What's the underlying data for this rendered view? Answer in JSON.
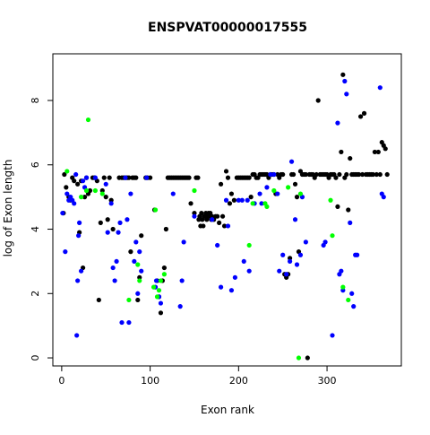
{
  "chart_data": {
    "type": "scatter",
    "title": "ENSPVAT00000017555",
    "xlabel": "Exon rank",
    "ylabel": "log of Exon length",
    "xlim": [
      -10,
      384
    ],
    "ylim": [
      -0.25,
      9.45
    ],
    "xticks": [
      "0",
      "100",
      "200",
      "300"
    ],
    "yticks": [
      "0",
      "2",
      "4",
      "6",
      "8"
    ],
    "xtick_values": [
      0,
      100,
      200,
      300
    ],
    "ytick_values": [
      0,
      2,
      4,
      6,
      8
    ],
    "legend": "none",
    "grid": false,
    "series": [
      {
        "color": "#000000",
        "points": [
          [
            2,
            4.5
          ],
          [
            3,
            5.7
          ],
          [
            5,
            5.3
          ],
          [
            8,
            5.0
          ],
          [
            10,
            4.9
          ],
          [
            12,
            5.6
          ],
          [
            14,
            5.5
          ],
          [
            18,
            5.4
          ],
          [
            20,
            3.9
          ],
          [
            22,
            5.5
          ],
          [
            24,
            2.8
          ],
          [
            26,
            5.0
          ],
          [
            28,
            5.6
          ],
          [
            30,
            5.1
          ],
          [
            32,
            5.2
          ],
          [
            35,
            5.6
          ],
          [
            37,
            5.6
          ],
          [
            40,
            5.5
          ],
          [
            42,
            1.8
          ],
          [
            44,
            4.2
          ],
          [
            46,
            5.2
          ],
          [
            48,
            5.6
          ],
          [
            50,
            5.0
          ],
          [
            52,
            4.3
          ],
          [
            54,
            5.6
          ],
          [
            56,
            4.9
          ],
          [
            58,
            4.0
          ],
          [
            65,
            5.6
          ],
          [
            68,
            5.6
          ],
          [
            70,
            5.6
          ],
          [
            72,
            5.6
          ],
          [
            74,
            5.6
          ],
          [
            76,
            5.6
          ],
          [
            78,
            3.3
          ],
          [
            80,
            5.6
          ],
          [
            82,
            5.6
          ],
          [
            84,
            5.6
          ],
          [
            86,
            1.8
          ],
          [
            88,
            2.5
          ],
          [
            90,
            3.8
          ],
          [
            95,
            5.6
          ],
          [
            97,
            5.6
          ],
          [
            100,
            5.6
          ],
          [
            105,
            4.6
          ],
          [
            108,
            2.4
          ],
          [
            110,
            1.9
          ],
          [
            112,
            1.4
          ],
          [
            114,
            2.4
          ],
          [
            116,
            2.8
          ],
          [
            118,
            4.0
          ],
          [
            120,
            5.6
          ],
          [
            122,
            5.6
          ],
          [
            124,
            5.6
          ],
          [
            126,
            5.6
          ],
          [
            128,
            5.6
          ],
          [
            130,
            5.6
          ],
          [
            132,
            5.6
          ],
          [
            134,
            5.6
          ],
          [
            136,
            5.6
          ],
          [
            138,
            5.6
          ],
          [
            140,
            5.6
          ],
          [
            142,
            5.6
          ],
          [
            144,
            5.6
          ],
          [
            146,
            4.8
          ],
          [
            150,
            4.5
          ],
          [
            152,
            5.6
          ],
          [
            154,
            5.6
          ],
          [
            155,
            4.3
          ],
          [
            156,
            4.4
          ],
          [
            157,
            4.1
          ],
          [
            158,
            4.5
          ],
          [
            159,
            4.3
          ],
          [
            160,
            4.1
          ],
          [
            161,
            4.4
          ],
          [
            162,
            4.4
          ],
          [
            163,
            4.5
          ],
          [
            164,
            4.3
          ],
          [
            165,
            4.4
          ],
          [
            166,
            4.5
          ],
          [
            167,
            4.4
          ],
          [
            168,
            4.5
          ],
          [
            169,
            4.3
          ],
          [
            170,
            4.4
          ],
          [
            172,
            4.3
          ],
          [
            174,
            4.4
          ],
          [
            176,
            4.4
          ],
          [
            178,
            4.2
          ],
          [
            180,
            5.4
          ],
          [
            182,
            4.4
          ],
          [
            184,
            4.1
          ],
          [
            186,
            5.8
          ],
          [
            188,
            5.6
          ],
          [
            190,
            4.8
          ],
          [
            192,
            5.1
          ],
          [
            195,
            4.9
          ],
          [
            198,
            5.6
          ],
          [
            200,
            5.6
          ],
          [
            202,
            5.6
          ],
          [
            204,
            5.6
          ],
          [
            206,
            5.6
          ],
          [
            208,
            5.6
          ],
          [
            210,
            5.6
          ],
          [
            212,
            5.6
          ],
          [
            214,
            5.0
          ],
          [
            216,
            5.7
          ],
          [
            218,
            5.7
          ],
          [
            220,
            5.6
          ],
          [
            222,
            5.6
          ],
          [
            224,
            5.7
          ],
          [
            226,
            5.7
          ],
          [
            228,
            5.7
          ],
          [
            230,
            5.7
          ],
          [
            232,
            5.7
          ],
          [
            234,
            5.6
          ],
          [
            236,
            5.7
          ],
          [
            238,
            5.7
          ],
          [
            240,
            5.7
          ],
          [
            242,
            5.1
          ],
          [
            244,
            5.7
          ],
          [
            246,
            5.6
          ],
          [
            248,
            5.7
          ],
          [
            250,
            5.7
          ],
          [
            252,
            2.6
          ],
          [
            254,
            2.5
          ],
          [
            256,
            2.6
          ],
          [
            258,
            3.1
          ],
          [
            260,
            5.7
          ],
          [
            262,
            5.7
          ],
          [
            264,
            5.4
          ],
          [
            266,
            5.0
          ],
          [
            268,
            3.3
          ],
          [
            270,
            5.8
          ],
          [
            272,
            5.7
          ],
          [
            274,
            5.7
          ],
          [
            276,
            5.7
          ],
          [
            278,
            0.0
          ],
          [
            280,
            5.7
          ],
          [
            282,
            5.7
          ],
          [
            284,
            5.7
          ],
          [
            286,
            5.6
          ],
          [
            288,
            5.7
          ],
          [
            290,
            8.0
          ],
          [
            292,
            5.7
          ],
          [
            294,
            5.7
          ],
          [
            296,
            5.7
          ],
          [
            298,
            5.7
          ],
          [
            300,
            5.7
          ],
          [
            302,
            5.6
          ],
          [
            304,
            5.7
          ],
          [
            306,
            5.7
          ],
          [
            308,
            5.7
          ],
          [
            310,
            5.6
          ],
          [
            312,
            4.7
          ],
          [
            314,
            5.7
          ],
          [
            316,
            6.4
          ],
          [
            318,
            8.8
          ],
          [
            320,
            5.6
          ],
          [
            322,
            5.7
          ],
          [
            324,
            4.6
          ],
          [
            326,
            6.2
          ],
          [
            328,
            5.7
          ],
          [
            330,
            5.7
          ],
          [
            332,
            5.7
          ],
          [
            334,
            5.7
          ],
          [
            336,
            5.7
          ],
          [
            338,
            7.5
          ],
          [
            340,
            5.7
          ],
          [
            342,
            7.6
          ],
          [
            344,
            5.7
          ],
          [
            346,
            5.7
          ],
          [
            348,
            5.7
          ],
          [
            350,
            5.7
          ],
          [
            352,
            5.7
          ],
          [
            354,
            6.4
          ],
          [
            356,
            5.7
          ],
          [
            358,
            6.4
          ],
          [
            360,
            5.7
          ],
          [
            362,
            6.7
          ],
          [
            364,
            6.6
          ],
          [
            366,
            6.5
          ],
          [
            368,
            5.7
          ]
        ]
      },
      {
        "color": "#0000ff",
        "points": [
          [
            1,
            4.5
          ],
          [
            4,
            3.3
          ],
          [
            6,
            5.1
          ],
          [
            8,
            4.9
          ],
          [
            10,
            5.0
          ],
          [
            12,
            4.9
          ],
          [
            14,
            4.8
          ],
          [
            16,
            5.7
          ],
          [
            17,
            0.7
          ],
          [
            18,
            2.4
          ],
          [
            19,
            3.8
          ],
          [
            20,
            4.2
          ],
          [
            22,
            2.7
          ],
          [
            24,
            5.5
          ],
          [
            26,
            5.3
          ],
          [
            28,
            5.6
          ],
          [
            38,
            5.6
          ],
          [
            50,
            5.4
          ],
          [
            52,
            3.9
          ],
          [
            56,
            4.8
          ],
          [
            58,
            2.8
          ],
          [
            60,
            2.4
          ],
          [
            62,
            3.0
          ],
          [
            64,
            3.9
          ],
          [
            66,
            4.2
          ],
          [
            68,
            1.1
          ],
          [
            72,
            5.6
          ],
          [
            74,
            4.3
          ],
          [
            76,
            1.1
          ],
          [
            78,
            5.1
          ],
          [
            82,
            3.0
          ],
          [
            84,
            3.6
          ],
          [
            86,
            2.0
          ],
          [
            88,
            3.3
          ],
          [
            90,
            2.7
          ],
          [
            96,
            5.6
          ],
          [
            106,
            2.2
          ],
          [
            107,
            2.4
          ],
          [
            110,
            1.9
          ],
          [
            112,
            1.7
          ],
          [
            126,
            5.1
          ],
          [
            134,
            1.6
          ],
          [
            136,
            2.4
          ],
          [
            138,
            3.6
          ],
          [
            150,
            4.4
          ],
          [
            170,
            4.3
          ],
          [
            176,
            3.5
          ],
          [
            180,
            2.2
          ],
          [
            186,
            4.9
          ],
          [
            188,
            4.1
          ],
          [
            192,
            2.1
          ],
          [
            196,
            2.5
          ],
          [
            200,
            4.9
          ],
          [
            204,
            4.9
          ],
          [
            206,
            3.0
          ],
          [
            210,
            4.9
          ],
          [
            212,
            2.7
          ],
          [
            218,
            4.8
          ],
          [
            224,
            5.1
          ],
          [
            226,
            4.8
          ],
          [
            232,
            5.3
          ],
          [
            236,
            5.7
          ],
          [
            240,
            5.7
          ],
          [
            244,
            5.1
          ],
          [
            246,
            2.7
          ],
          [
            250,
            3.2
          ],
          [
            254,
            2.6
          ],
          [
            258,
            3.0
          ],
          [
            260,
            6.1
          ],
          [
            264,
            4.3
          ],
          [
            266,
            2.9
          ],
          [
            270,
            3.2
          ],
          [
            272,
            5.0
          ],
          [
            276,
            3.6
          ],
          [
            296,
            3.5
          ],
          [
            298,
            3.6
          ],
          [
            306,
            0.7
          ],
          [
            312,
            7.3
          ],
          [
            314,
            2.6
          ],
          [
            316,
            2.7
          ],
          [
            318,
            2.1
          ],
          [
            320,
            8.6
          ],
          [
            322,
            8.2
          ],
          [
            326,
            4.2
          ],
          [
            328,
            2.0
          ],
          [
            330,
            1.6
          ],
          [
            332,
            3.2
          ],
          [
            334,
            3.2
          ],
          [
            360,
            8.4
          ],
          [
            362,
            5.1
          ],
          [
            364,
            5.0
          ]
        ]
      },
      {
        "color": "#00ff00",
        "points": [
          [
            6,
            5.8
          ],
          [
            22,
            5.0
          ],
          [
            28,
            5.2
          ],
          [
            30,
            7.4
          ],
          [
            38,
            5.2
          ],
          [
            46,
            5.1
          ],
          [
            76,
            1.8
          ],
          [
            86,
            2.9
          ],
          [
            88,
            2.4
          ],
          [
            104,
            2.2
          ],
          [
            106,
            4.6
          ],
          [
            108,
            1.9
          ],
          [
            110,
            2.1
          ],
          [
            112,
            2.4
          ],
          [
            116,
            2.6
          ],
          [
            150,
            5.2
          ],
          [
            212,
            3.5
          ],
          [
            216,
            4.8
          ],
          [
            230,
            4.8
          ],
          [
            232,
            4.7
          ],
          [
            240,
            5.2
          ],
          [
            256,
            5.3
          ],
          [
            268,
            0.0
          ],
          [
            270,
            5.1
          ],
          [
            304,
            4.9
          ],
          [
            306,
            3.8
          ],
          [
            318,
            2.2
          ],
          [
            324,
            1.8
          ]
        ]
      }
    ]
  }
}
